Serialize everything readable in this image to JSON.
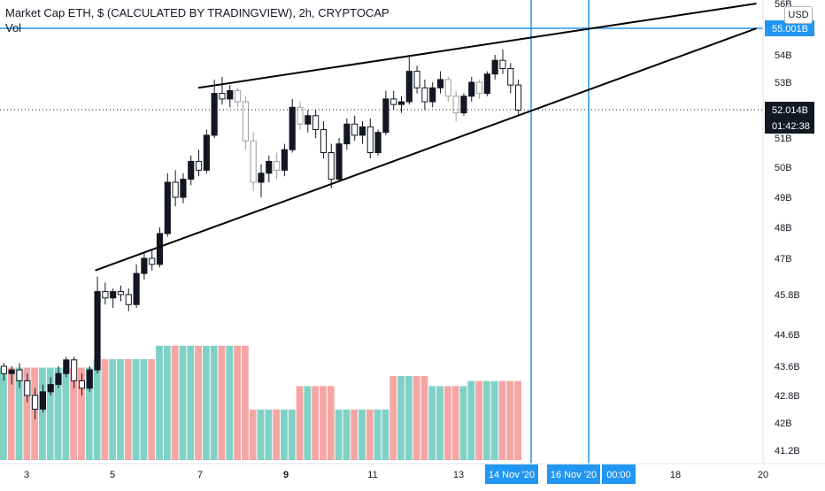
{
  "header": {
    "title": "Market Cap ETH, $ (CALCULATED BY TRADINGVIEW), 2h, CRYPTOCAP",
    "volume_label": "Vol"
  },
  "currency_label": "USD",
  "colors": {
    "up_candle": "#131722",
    "down_candle": "#ffffff",
    "gray_candle": "#9e9e9e",
    "vol_up": "#7fd1c6",
    "vol_down": "#f4a6a4",
    "accent_line": "#2196f3",
    "current_price_tag": "#131722"
  },
  "chart_data": {
    "type": "candlestick",
    "y_axis_ticks": [
      "56B",
      "55.001B",
      "54B",
      "53B",
      "52.014B",
      "51B",
      "50B",
      "49B",
      "48B",
      "47B",
      "45.8B",
      "44.6B",
      "43.6B",
      "42.8B",
      "42B",
      "41.2B"
    ],
    "x_axis_ticks": [
      "3",
      "5",
      "7",
      "9",
      "11",
      "13",
      "14 Nov '20",
      "16 Nov '20",
      "00:00",
      "18",
      "20"
    ],
    "horizontal_line_price": "55.001B",
    "current_price": "52.014B",
    "countdown": "01:42:38",
    "vertical_markers": [
      "14 Nov '20",
      "16 Nov '20"
    ],
    "wedge": {
      "upper_line": [
        {
          "x": "7",
          "y": 52.8
        },
        {
          "x": "20",
          "y": 56.0
        }
      ],
      "lower_line": [
        {
          "x": "4.6",
          "y": 46.6
        },
        {
          "x": "20",
          "y": 55.0
        }
      ]
    },
    "candles_note": "Rising wedge pattern on ETH market cap, Nov 3 to Nov 14 2020",
    "candles": [
      {
        "o": 43.6,
        "h": 43.7,
        "l": 43.2,
        "c": 43.4
      },
      {
        "o": 43.4,
        "h": 43.6,
        "l": 43.1,
        "c": 43.5
      },
      {
        "o": 43.5,
        "h": 43.7,
        "l": 43.0,
        "c": 43.2
      },
      {
        "o": 43.2,
        "h": 43.4,
        "l": 42.6,
        "c": 42.8
      },
      {
        "o": 42.8,
        "h": 43.0,
        "l": 42.1,
        "c": 42.4
      },
      {
        "o": 42.4,
        "h": 43.1,
        "l": 42.3,
        "c": 42.9
      },
      {
        "o": 42.9,
        "h": 43.3,
        "l": 42.8,
        "c": 43.1
      },
      {
        "o": 43.1,
        "h": 43.6,
        "l": 43.0,
        "c": 43.4
      },
      {
        "o": 43.4,
        "h": 43.9,
        "l": 43.3,
        "c": 43.8
      },
      {
        "o": 43.8,
        "h": 43.9,
        "l": 43.0,
        "c": 43.2
      },
      {
        "o": 43.2,
        "h": 43.4,
        "l": 42.8,
        "c": 43.0
      },
      {
        "o": 43.0,
        "h": 43.6,
        "l": 42.9,
        "c": 43.5
      },
      {
        "o": 43.5,
        "h": 46.4,
        "l": 43.4,
        "c": 45.9
      },
      {
        "o": 45.9,
        "h": 46.2,
        "l": 45.5,
        "c": 45.7
      },
      {
        "o": 45.7,
        "h": 46.0,
        "l": 45.4,
        "c": 45.9
      },
      {
        "o": 45.9,
        "h": 46.1,
        "l": 45.6,
        "c": 45.8
      },
      {
        "o": 45.8,
        "h": 46.0,
        "l": 45.3,
        "c": 45.5
      },
      {
        "o": 45.5,
        "h": 46.8,
        "l": 45.4,
        "c": 46.5
      },
      {
        "o": 46.5,
        "h": 47.2,
        "l": 46.3,
        "c": 47.0
      },
      {
        "o": 47.0,
        "h": 47.3,
        "l": 46.6,
        "c": 46.8
      },
      {
        "o": 46.8,
        "h": 48.0,
        "l": 46.7,
        "c": 47.8
      },
      {
        "o": 47.8,
        "h": 49.8,
        "l": 47.7,
        "c": 49.5
      },
      {
        "o": 49.5,
        "h": 49.9,
        "l": 48.7,
        "c": 49.0
      },
      {
        "o": 49.0,
        "h": 49.8,
        "l": 48.8,
        "c": 49.6
      },
      {
        "o": 49.6,
        "h": 50.4,
        "l": 49.4,
        "c": 50.2
      },
      {
        "o": 50.2,
        "h": 50.6,
        "l": 49.7,
        "c": 49.9
      },
      {
        "o": 49.9,
        "h": 51.3,
        "l": 49.8,
        "c": 51.1
      },
      {
        "o": 51.1,
        "h": 53.1,
        "l": 51.0,
        "c": 52.6
      },
      {
        "o": 52.6,
        "h": 53.2,
        "l": 52.2,
        "c": 52.4
      },
      {
        "o": 52.4,
        "h": 52.9,
        "l": 52.1,
        "c": 52.7
      },
      {
        "o": 52.7,
        "h": 52.8,
        "l": 52.1,
        "c": 52.3
      },
      {
        "o": 52.3,
        "h": 52.5,
        "l": 50.6,
        "c": 50.9
      },
      {
        "o": 50.9,
        "h": 51.2,
        "l": 49.2,
        "c": 49.5
      },
      {
        "o": 49.5,
        "h": 50.1,
        "l": 49.0,
        "c": 49.8
      },
      {
        "o": 49.8,
        "h": 50.4,
        "l": 49.5,
        "c": 50.2
      },
      {
        "o": 50.2,
        "h": 50.5,
        "l": 49.6,
        "c": 49.9
      },
      {
        "o": 49.9,
        "h": 50.8,
        "l": 49.7,
        "c": 50.6
      },
      {
        "o": 50.6,
        "h": 52.4,
        "l": 50.5,
        "c": 52.1
      },
      {
        "o": 52.1,
        "h": 52.3,
        "l": 51.3,
        "c": 51.5
      },
      {
        "o": 51.5,
        "h": 52.0,
        "l": 51.2,
        "c": 51.8
      },
      {
        "o": 51.8,
        "h": 52.0,
        "l": 51.0,
        "c": 51.3
      },
      {
        "o": 51.3,
        "h": 51.6,
        "l": 50.3,
        "c": 50.5
      },
      {
        "o": 50.5,
        "h": 50.8,
        "l": 49.3,
        "c": 49.6
      },
      {
        "o": 49.6,
        "h": 51.0,
        "l": 49.5,
        "c": 50.8
      },
      {
        "o": 50.8,
        "h": 51.7,
        "l": 50.6,
        "c": 51.5
      },
      {
        "o": 51.5,
        "h": 51.8,
        "l": 50.9,
        "c": 51.1
      },
      {
        "o": 51.1,
        "h": 51.6,
        "l": 50.8,
        "c": 51.4
      },
      {
        "o": 51.4,
        "h": 51.7,
        "l": 50.3,
        "c": 50.5
      },
      {
        "o": 50.5,
        "h": 51.3,
        "l": 50.4,
        "c": 51.2
      },
      {
        "o": 51.2,
        "h": 52.7,
        "l": 51.1,
        "c": 52.4
      },
      {
        "o": 52.4,
        "h": 52.7,
        "l": 52.0,
        "c": 52.2
      },
      {
        "o": 52.2,
        "h": 52.5,
        "l": 51.9,
        "c": 52.3
      },
      {
        "o": 52.3,
        "h": 54.0,
        "l": 52.2,
        "c": 53.4
      },
      {
        "o": 53.4,
        "h": 53.6,
        "l": 52.6,
        "c": 52.8
      },
      {
        "o": 52.8,
        "h": 53.1,
        "l": 52.0,
        "c": 52.3
      },
      {
        "o": 52.3,
        "h": 53.0,
        "l": 52.1,
        "c": 52.8
      },
      {
        "o": 52.8,
        "h": 53.4,
        "l": 52.6,
        "c": 53.1
      },
      {
        "o": 53.1,
        "h": 53.2,
        "l": 52.3,
        "c": 52.5
      },
      {
        "o": 52.5,
        "h": 52.7,
        "l": 51.6,
        "c": 51.9
      },
      {
        "o": 51.9,
        "h": 52.6,
        "l": 51.8,
        "c": 52.5
      },
      {
        "o": 52.5,
        "h": 53.2,
        "l": 52.3,
        "c": 53.0
      },
      {
        "o": 53.0,
        "h": 53.1,
        "l": 52.4,
        "c": 52.6
      },
      {
        "o": 52.6,
        "h": 53.4,
        "l": 52.5,
        "c": 53.3
      },
      {
        "o": 53.3,
        "h": 54.0,
        "l": 53.1,
        "c": 53.8
      },
      {
        "o": 53.8,
        "h": 54.2,
        "l": 53.3,
        "c": 53.5
      },
      {
        "o": 53.5,
        "h": 53.7,
        "l": 52.6,
        "c": 52.9
      },
      {
        "o": 52.9,
        "h": 53.1,
        "l": 51.8,
        "c": 52.0
      }
    ],
    "volumes": [
      {
        "v": 0.55,
        "up": true
      },
      {
        "v": 0.55,
        "up": false
      },
      {
        "v": 0.55,
        "up": true
      },
      {
        "v": 0.55,
        "up": false
      },
      {
        "v": 0.55,
        "up": false
      },
      {
        "v": 0.55,
        "up": true
      },
      {
        "v": 0.55,
        "up": true
      },
      {
        "v": 0.55,
        "up": true
      },
      {
        "v": 0.55,
        "up": true
      },
      {
        "v": 0.55,
        "up": false
      },
      {
        "v": 0.55,
        "up": false
      },
      {
        "v": 0.55,
        "up": true
      },
      {
        "v": 0.6,
        "up": true
      },
      {
        "v": 0.6,
        "up": false
      },
      {
        "v": 0.6,
        "up": true
      },
      {
        "v": 0.6,
        "up": true
      },
      {
        "v": 0.6,
        "up": false
      },
      {
        "v": 0.6,
        "up": true
      },
      {
        "v": 0.6,
        "up": true
      },
      {
        "v": 0.6,
        "up": false
      },
      {
        "v": 0.68,
        "up": true
      },
      {
        "v": 0.68,
        "up": true
      },
      {
        "v": 0.68,
        "up": false
      },
      {
        "v": 0.68,
        "up": true
      },
      {
        "v": 0.68,
        "up": true
      },
      {
        "v": 0.68,
        "up": false
      },
      {
        "v": 0.68,
        "up": true
      },
      {
        "v": 0.68,
        "up": true
      },
      {
        "v": 0.68,
        "up": false
      },
      {
        "v": 0.68,
        "up": true
      },
      {
        "v": 0.68,
        "up": false
      },
      {
        "v": 0.68,
        "up": false
      },
      {
        "v": 0.3,
        "up": false
      },
      {
        "v": 0.3,
        "up": true
      },
      {
        "v": 0.3,
        "up": true
      },
      {
        "v": 0.3,
        "up": false
      },
      {
        "v": 0.3,
        "up": true
      },
      {
        "v": 0.3,
        "up": true
      },
      {
        "v": 0.44,
        "up": false
      },
      {
        "v": 0.44,
        "up": true
      },
      {
        "v": 0.44,
        "up": false
      },
      {
        "v": 0.44,
        "up": false
      },
      {
        "v": 0.44,
        "up": false
      },
      {
        "v": 0.3,
        "up": true
      },
      {
        "v": 0.3,
        "up": true
      },
      {
        "v": 0.3,
        "up": false
      },
      {
        "v": 0.3,
        "up": true
      },
      {
        "v": 0.3,
        "up": false
      },
      {
        "v": 0.3,
        "up": true
      },
      {
        "v": 0.3,
        "up": true
      },
      {
        "v": 0.5,
        "up": false
      },
      {
        "v": 0.5,
        "up": true
      },
      {
        "v": 0.5,
        "up": true
      },
      {
        "v": 0.5,
        "up": false
      },
      {
        "v": 0.5,
        "up": false
      },
      {
        "v": 0.44,
        "up": true
      },
      {
        "v": 0.44,
        "up": true
      },
      {
        "v": 0.44,
        "up": false
      },
      {
        "v": 0.44,
        "up": false
      },
      {
        "v": 0.44,
        "up": true
      },
      {
        "v": 0.47,
        "up": true
      },
      {
        "v": 0.47,
        "up": false
      },
      {
        "v": 0.47,
        "up": true
      },
      {
        "v": 0.47,
        "up": true
      },
      {
        "v": 0.47,
        "up": false
      },
      {
        "v": 0.47,
        "up": false
      },
      {
        "v": 0.47,
        "up": false
      }
    ]
  }
}
